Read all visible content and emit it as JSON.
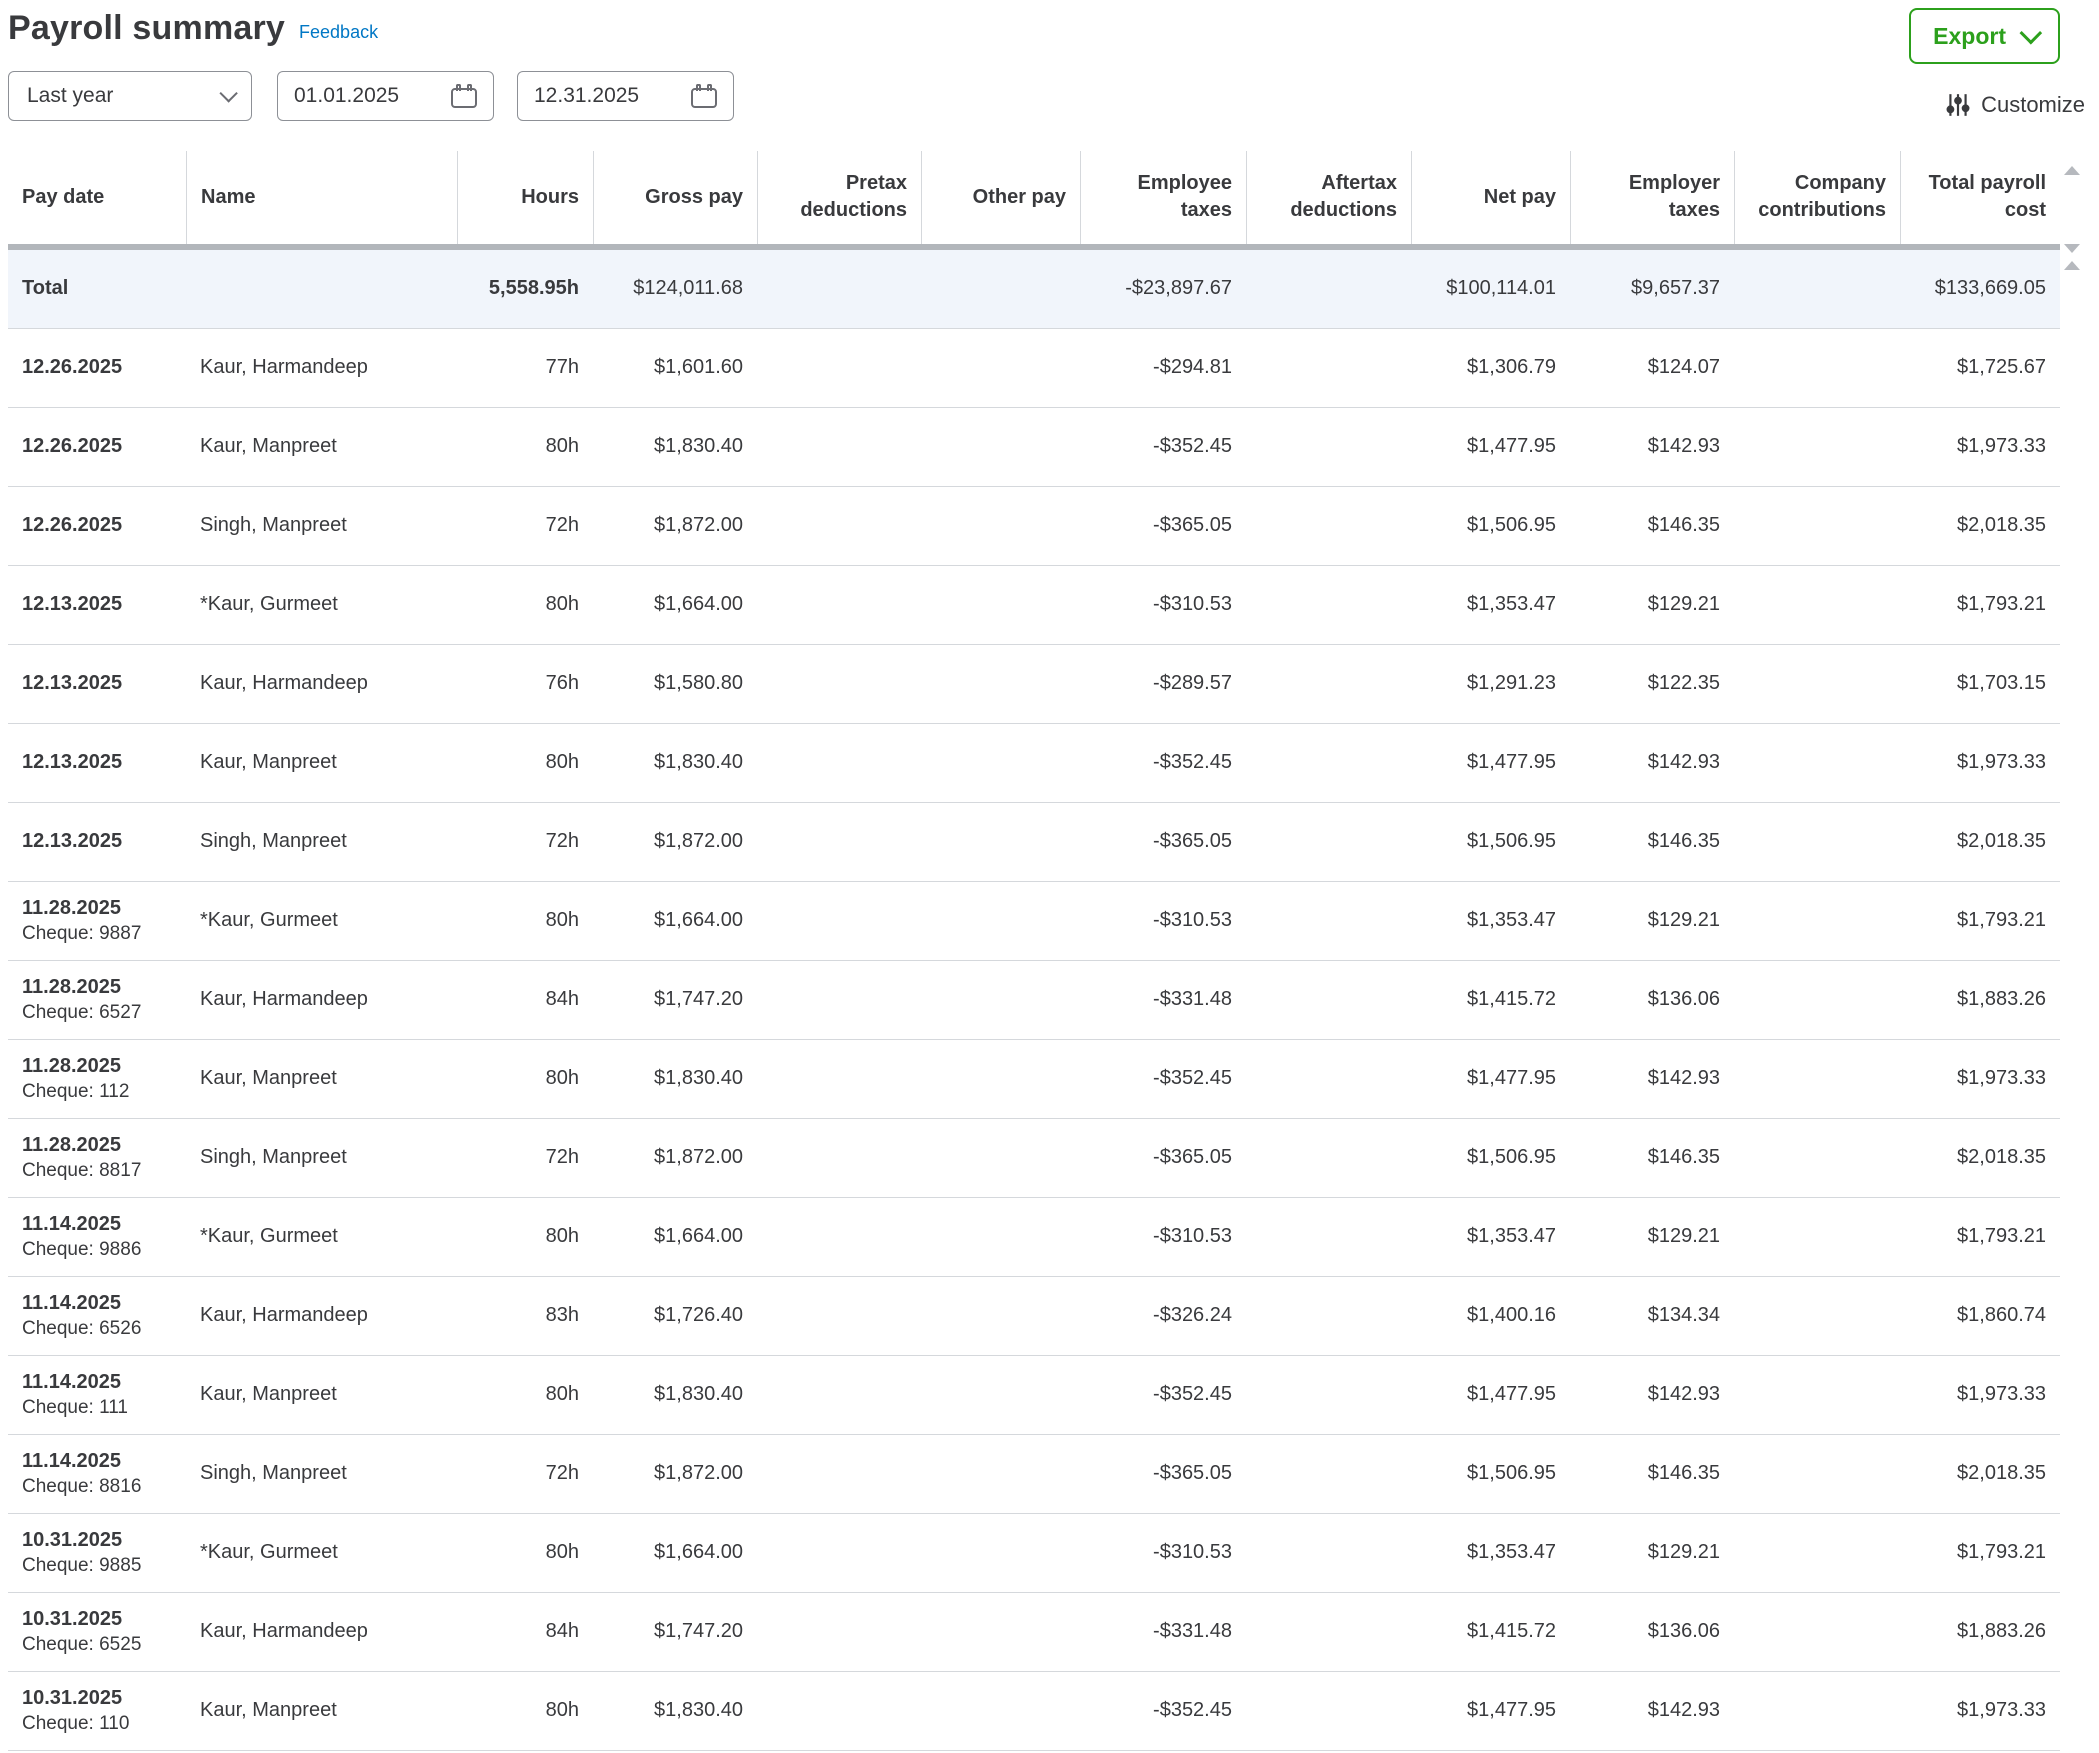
{
  "header": {
    "title": "Payroll summary",
    "feedback_label": "Feedback",
    "export_label": "Export"
  },
  "filters": {
    "period_selected": "Last year",
    "start_date": "01.01.2025",
    "end_date": "12.31.2025",
    "customize_label": "Customize"
  },
  "colors": {
    "accent_green": "#2ca01c",
    "link_blue": "#0077c5",
    "text": "#393a3d",
    "total_row_bg": "#f1f5fb",
    "divider": "#d5d8dc",
    "scrollbar": "#b2b6bb"
  },
  "table": {
    "columns": [
      {
        "label": "Pay date",
        "align": "left"
      },
      {
        "label": "Name",
        "align": "left"
      },
      {
        "label": "Hours",
        "align": "right"
      },
      {
        "label": "Gross pay",
        "align": "right"
      },
      {
        "label": "Pretax deductions",
        "align": "right"
      },
      {
        "label": "Other pay",
        "align": "right"
      },
      {
        "label": "Employee taxes",
        "align": "right"
      },
      {
        "label": "Aftertax deductions",
        "align": "right"
      },
      {
        "label": "Net pay",
        "align": "right"
      },
      {
        "label": "Employer taxes",
        "align": "right"
      },
      {
        "label": "Company contributions",
        "align": "right"
      },
      {
        "label": "Total payroll cost",
        "align": "right"
      }
    ],
    "total": {
      "label": "Total",
      "hours": "5,558.95h",
      "gross": "$124,011.68",
      "pretax": "",
      "other": "",
      "employee_taxes": "-$23,897.67",
      "aftertax": "",
      "net": "$100,114.01",
      "employer_taxes": "$9,657.37",
      "company": "",
      "total": "$133,669.05"
    },
    "rows": [
      {
        "date": "12.26.2025",
        "cheque": "",
        "name": "Kaur, Harmandeep",
        "hours": "77h",
        "gross": "$1,601.60",
        "pretax": "",
        "other": "",
        "employee_taxes": "-$294.81",
        "aftertax": "",
        "net": "$1,306.79",
        "employer_taxes": "$124.07",
        "company": "",
        "total": "$1,725.67"
      },
      {
        "date": "12.26.2025",
        "cheque": "",
        "name": "Kaur, Manpreet",
        "hours": "80h",
        "gross": "$1,830.40",
        "pretax": "",
        "other": "",
        "employee_taxes": "-$352.45",
        "aftertax": "",
        "net": "$1,477.95",
        "employer_taxes": "$142.93",
        "company": "",
        "total": "$1,973.33"
      },
      {
        "date": "12.26.2025",
        "cheque": "",
        "name": "Singh, Manpreet",
        "hours": "72h",
        "gross": "$1,872.00",
        "pretax": "",
        "other": "",
        "employee_taxes": "-$365.05",
        "aftertax": "",
        "net": "$1,506.95",
        "employer_taxes": "$146.35",
        "company": "",
        "total": "$2,018.35"
      },
      {
        "date": "12.13.2025",
        "cheque": "",
        "name": "*Kaur, Gurmeet",
        "hours": "80h",
        "gross": "$1,664.00",
        "pretax": "",
        "other": "",
        "employee_taxes": "-$310.53",
        "aftertax": "",
        "net": "$1,353.47",
        "employer_taxes": "$129.21",
        "company": "",
        "total": "$1,793.21"
      },
      {
        "date": "12.13.2025",
        "cheque": "",
        "name": "Kaur, Harmandeep",
        "hours": "76h",
        "gross": "$1,580.80",
        "pretax": "",
        "other": "",
        "employee_taxes": "-$289.57",
        "aftertax": "",
        "net": "$1,291.23",
        "employer_taxes": "$122.35",
        "company": "",
        "total": "$1,703.15"
      },
      {
        "date": "12.13.2025",
        "cheque": "",
        "name": "Kaur, Manpreet",
        "hours": "80h",
        "gross": "$1,830.40",
        "pretax": "",
        "other": "",
        "employee_taxes": "-$352.45",
        "aftertax": "",
        "net": "$1,477.95",
        "employer_taxes": "$142.93",
        "company": "",
        "total": "$1,973.33"
      },
      {
        "date": "12.13.2025",
        "cheque": "",
        "name": "Singh, Manpreet",
        "hours": "72h",
        "gross": "$1,872.00",
        "pretax": "",
        "other": "",
        "employee_taxes": "-$365.05",
        "aftertax": "",
        "net": "$1,506.95",
        "employer_taxes": "$146.35",
        "company": "",
        "total": "$2,018.35"
      },
      {
        "date": "11.28.2025",
        "cheque": "Cheque: 9887",
        "name": "*Kaur, Gurmeet",
        "hours": "80h",
        "gross": "$1,664.00",
        "pretax": "",
        "other": "",
        "employee_taxes": "-$310.53",
        "aftertax": "",
        "net": "$1,353.47",
        "employer_taxes": "$129.21",
        "company": "",
        "total": "$1,793.21"
      },
      {
        "date": "11.28.2025",
        "cheque": "Cheque: 6527",
        "name": "Kaur, Harmandeep",
        "hours": "84h",
        "gross": "$1,747.20",
        "pretax": "",
        "other": "",
        "employee_taxes": "-$331.48",
        "aftertax": "",
        "net": "$1,415.72",
        "employer_taxes": "$136.06",
        "company": "",
        "total": "$1,883.26"
      },
      {
        "date": "11.28.2025",
        "cheque": "Cheque: 112",
        "name": "Kaur, Manpreet",
        "hours": "80h",
        "gross": "$1,830.40",
        "pretax": "",
        "other": "",
        "employee_taxes": "-$352.45",
        "aftertax": "",
        "net": "$1,477.95",
        "employer_taxes": "$142.93",
        "company": "",
        "total": "$1,973.33"
      },
      {
        "date": "11.28.2025",
        "cheque": "Cheque: 8817",
        "name": "Singh, Manpreet",
        "hours": "72h",
        "gross": "$1,872.00",
        "pretax": "",
        "other": "",
        "employee_taxes": "-$365.05",
        "aftertax": "",
        "net": "$1,506.95",
        "employer_taxes": "$146.35",
        "company": "",
        "total": "$2,018.35"
      },
      {
        "date": "11.14.2025",
        "cheque": "Cheque: 9886",
        "name": "*Kaur, Gurmeet",
        "hours": "80h",
        "gross": "$1,664.00",
        "pretax": "",
        "other": "",
        "employee_taxes": "-$310.53",
        "aftertax": "",
        "net": "$1,353.47",
        "employer_taxes": "$129.21",
        "company": "",
        "total": "$1,793.21"
      },
      {
        "date": "11.14.2025",
        "cheque": "Cheque: 6526",
        "name": "Kaur, Harmandeep",
        "hours": "83h",
        "gross": "$1,726.40",
        "pretax": "",
        "other": "",
        "employee_taxes": "-$326.24",
        "aftertax": "",
        "net": "$1,400.16",
        "employer_taxes": "$134.34",
        "company": "",
        "total": "$1,860.74"
      },
      {
        "date": "11.14.2025",
        "cheque": "Cheque: 111",
        "name": "Kaur, Manpreet",
        "hours": "80h",
        "gross": "$1,830.40",
        "pretax": "",
        "other": "",
        "employee_taxes": "-$352.45",
        "aftertax": "",
        "net": "$1,477.95",
        "employer_taxes": "$142.93",
        "company": "",
        "total": "$1,973.33"
      },
      {
        "date": "11.14.2025",
        "cheque": "Cheque: 8816",
        "name": "Singh, Manpreet",
        "hours": "72h",
        "gross": "$1,872.00",
        "pretax": "",
        "other": "",
        "employee_taxes": "-$365.05",
        "aftertax": "",
        "net": "$1,506.95",
        "employer_taxes": "$146.35",
        "company": "",
        "total": "$2,018.35"
      },
      {
        "date": "10.31.2025",
        "cheque": "Cheque: 9885",
        "name": "*Kaur, Gurmeet",
        "hours": "80h",
        "gross": "$1,664.00",
        "pretax": "",
        "other": "",
        "employee_taxes": "-$310.53",
        "aftertax": "",
        "net": "$1,353.47",
        "employer_taxes": "$129.21",
        "company": "",
        "total": "$1,793.21"
      },
      {
        "date": "10.31.2025",
        "cheque": "Cheque: 6525",
        "name": "Kaur, Harmandeep",
        "hours": "84h",
        "gross": "$1,747.20",
        "pretax": "",
        "other": "",
        "employee_taxes": "-$331.48",
        "aftertax": "",
        "net": "$1,415.72",
        "employer_taxes": "$136.06",
        "company": "",
        "total": "$1,883.26"
      },
      {
        "date": "10.31.2025",
        "cheque": "Cheque: 110",
        "name": "Kaur, Manpreet",
        "hours": "80h",
        "gross": "$1,830.40",
        "pretax": "",
        "other": "",
        "employee_taxes": "-$352.45",
        "aftertax": "",
        "net": "$1,477.95",
        "employer_taxes": "$142.93",
        "company": "",
        "total": "$1,973.33"
      }
    ]
  }
}
